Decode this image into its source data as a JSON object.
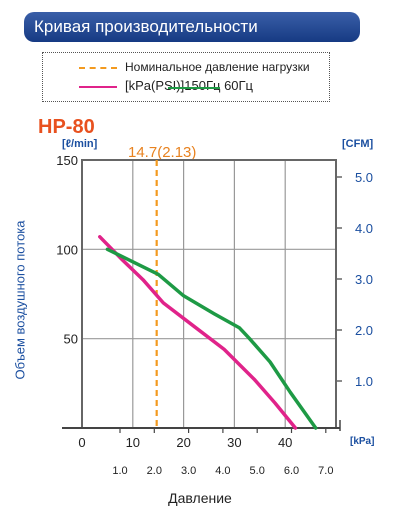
{
  "header": {
    "title": "Кривая производительности"
  },
  "legend": {
    "nominal_label": "Номинальное давление нагрузки",
    "units_label": "[kPa(PSI)]",
    "freq_50": "150Гц",
    "freq_60": "60Гц"
  },
  "chart_data": {
    "type": "line",
    "title": "HP-80",
    "ylabel": "Объем воздушного потока",
    "xlabel": "Давление",
    "y_unit_left": "[ℓ/min]",
    "y_unit_right": "[CFM]",
    "x_unit": "[kPa]",
    "xlim": [
      0,
      50
    ],
    "ylim": [
      0,
      150
    ],
    "x_ticks": [
      "0",
      "10",
      "20",
      "30",
      "40"
    ],
    "y_ticks": [
      "50",
      "100",
      "150"
    ],
    "psi_ticks": [
      "1.0",
      "2.0",
      "3.0",
      "4.0",
      "5.0",
      "6.0",
      "7.0"
    ],
    "cfm_ticks": [
      "1.0",
      "2.0",
      "3.0",
      "4.0",
      "5.0"
    ],
    "nominal_pressure": {
      "label": "14.7(2.13)",
      "x": 14.7
    },
    "series": [
      {
        "name": "150Гц",
        "color": "#e0238a",
        "points": [
          [
            3.5,
            107
          ],
          [
            8,
            94
          ],
          [
            12,
            83
          ],
          [
            16,
            70
          ],
          [
            22,
            57
          ],
          [
            28,
            44
          ],
          [
            34,
            27
          ],
          [
            38,
            14
          ],
          [
            42,
            0
          ]
        ]
      },
      {
        "name": "60Гц",
        "color": "#1e9a45",
        "points": [
          [
            5,
            100
          ],
          [
            10,
            93
          ],
          [
            15,
            86
          ],
          [
            20,
            74
          ],
          [
            26,
            64
          ],
          [
            31,
            56
          ],
          [
            33,
            50
          ],
          [
            37,
            37
          ],
          [
            41,
            20
          ],
          [
            46,
            0
          ]
        ]
      }
    ],
    "grid": true,
    "colors": {
      "axis_text": "#1b4fa0",
      "nominal": "#f39a1f",
      "grid": "#999999"
    }
  }
}
